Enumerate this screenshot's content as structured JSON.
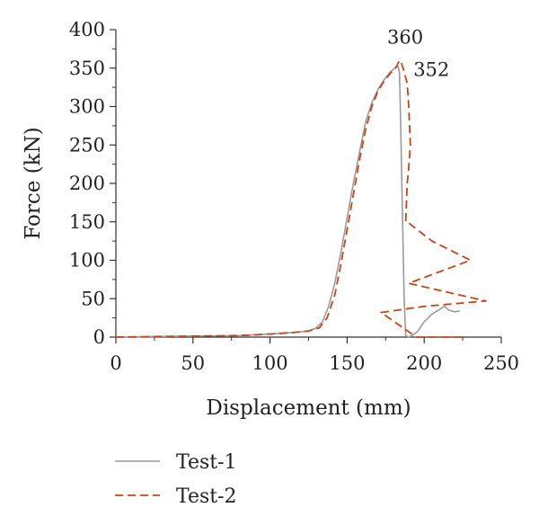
{
  "chart_data": {
    "type": "line",
    "title": "",
    "xlabel": "Displacement (mm)",
    "ylabel": "Force (kN)",
    "xlim": [
      0,
      250
    ],
    "ylim": [
      0,
      400
    ],
    "xticks": [
      0,
      50,
      100,
      150,
      200,
      250
    ],
    "yticks": [
      0,
      50,
      100,
      150,
      200,
      250,
      300,
      350,
      400
    ],
    "grid": false,
    "legend_position": "bottom-left",
    "series": [
      {
        "name": "Test-1",
        "color": "#9a9a9a",
        "dash": "solid",
        "x": [
          0,
          40,
          80,
          100,
          115,
          125,
          130,
          134,
          138,
          142,
          146,
          150,
          154,
          158,
          162,
          166,
          170,
          174,
          178,
          181,
          183,
          184,
          184.5,
          185,
          185.5,
          186,
          186.5,
          187,
          188,
          190,
          193,
          196,
          200,
          205,
          210,
          213,
          216,
          220,
          223
        ],
        "y": [
          0,
          1,
          2,
          4,
          6,
          8,
          12,
          20,
          40,
          70,
          110,
          155,
          200,
          240,
          280,
          305,
          322,
          335,
          345,
          350,
          352,
          345,
          300,
          250,
          200,
          150,
          100,
          50,
          2,
          0,
          3,
          8,
          20,
          30,
          36,
          40,
          35,
          33,
          34
        ]
      },
      {
        "name": "Test-2",
        "color": "#cc4411",
        "dash": "dashed",
        "x": [
          0,
          40,
          80,
          100,
          115,
          125,
          132,
          137,
          142,
          146,
          150,
          154,
          158,
          162,
          166,
          170,
          174,
          178,
          182,
          184,
          185,
          187,
          189,
          190,
          191,
          190,
          189,
          188,
          189,
          205,
          218,
          230,
          190,
          240,
          200,
          172,
          195,
          225
        ],
        "y": [
          0,
          1,
          2,
          4,
          6,
          8,
          12,
          25,
          55,
          95,
          140,
          185,
          230,
          270,
          300,
          320,
          333,
          343,
          352,
          360,
          358,
          345,
          330,
          300,
          250,
          220,
          200,
          150,
          150,
          125,
          112,
          100,
          70,
          47,
          40,
          32,
          0,
          0
        ]
      }
    ],
    "annotations": [
      {
        "text": "360",
        "x": 176,
        "y": 382
      },
      {
        "text": "352",
        "x": 193,
        "y": 340
      }
    ]
  }
}
